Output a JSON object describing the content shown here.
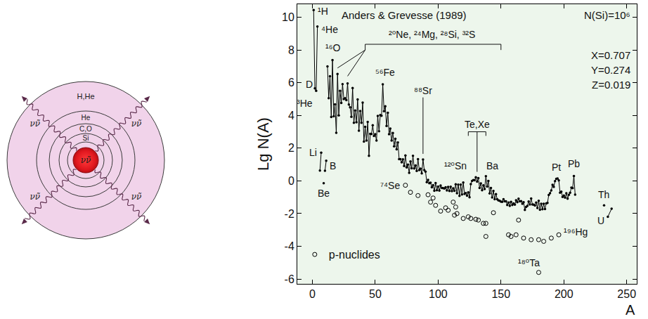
{
  "diagram": {
    "shells": [
      "H,He",
      "He",
      "C,O",
      "Si"
    ],
    "core": "νν̃",
    "rays": [
      "νν̃",
      "νν̃",
      "νν̃",
      "νν̃"
    ]
  },
  "chart_data": {
    "type": "line",
    "xlabel": "A",
    "ylabel": "Lg N(A)",
    "xlim": [
      -12,
      258
    ],
    "ylim": [
      -6.3,
      10.8
    ],
    "xticks": [
      0,
      50,
      100,
      150,
      200,
      250
    ],
    "yticks": [
      -6,
      -4,
      -2,
      0,
      2,
      4,
      6,
      8,
      10
    ],
    "grid": false,
    "legend": "lower left",
    "series": [
      {
        "color": "#000000",
        "marker": "dot",
        "line_style": "solid",
        "x": [
          1,
          2,
          3,
          4
        ],
        "values": [
          10.45,
          5.66,
          5.5,
          9.44
        ]
      },
      {
        "color": "#000000",
        "marker": "dot",
        "line_style": "solid",
        "x": [
          6,
          7,
          8,
          10,
          11
        ],
        "values": [
          0.63,
          1.72,
          null,
          0.62,
          1.23
        ]
      },
      {
        "color": "#000000",
        "marker": "dot",
        "line_style": "solid",
        "x": [
          9
        ],
        "values": [
          -0.14
        ]
      },
      {
        "color": "#000000",
        "marker": "dot",
        "line_style": "solid",
        "x": [
          12,
          13,
          14,
          15,
          16,
          17,
          18,
          19,
          20,
          21,
          22,
          23,
          24,
          25,
          26,
          27,
          28,
          29,
          30,
          31,
          32,
          33,
          34,
          35,
          36,
          37,
          38,
          39,
          40,
          41,
          42,
          43,
          44,
          45,
          46,
          47,
          48,
          49,
          50,
          51,
          52,
          53,
          54,
          55,
          56,
          57,
          58,
          59,
          60,
          61,
          62,
          63,
          64,
          65,
          66,
          67,
          68,
          69,
          70,
          71,
          72,
          73,
          74,
          75,
          76,
          77,
          78,
          79,
          80,
          81,
          82,
          83,
          84,
          85,
          86,
          87,
          88,
          89,
          90,
          91,
          92,
          93,
          94,
          95,
          96,
          97,
          98,
          99,
          100,
          101,
          102,
          103,
          104,
          105,
          106,
          107,
          108,
          109,
          110,
          111,
          112,
          113,
          114,
          115,
          116,
          117,
          118,
          119,
          120,
          121,
          122,
          123,
          124,
          125,
          126,
          127,
          128,
          129,
          130,
          131,
          132,
          133,
          134,
          135,
          136,
          137,
          138,
          139,
          140,
          141,
          142,
          143,
          144,
          145,
          146,
          147,
          148,
          149,
          150,
          151,
          152,
          153,
          154,
          155,
          156,
          157,
          158,
          159,
          160,
          161,
          162,
          163,
          164,
          165,
          166,
          167,
          168,
          169,
          170,
          171,
          172,
          173,
          174,
          175,
          176,
          177,
          178,
          179,
          180,
          181,
          182,
          183,
          184,
          185,
          186,
          187,
          188,
          189,
          190,
          191,
          192,
          193,
          194,
          195,
          196,
          197,
          198,
          199,
          200,
          201,
          202,
          203,
          204,
          205,
          206,
          207,
          208,
          209
        ],
        "values": [
          7.0,
          5.05,
          6.4,
          3.9,
          7.38,
          3.95,
          4.68,
          2.94,
          6.54,
          4.0,
          5.5,
          4.76,
          5.91,
          5.0,
          5.05,
          4.93,
          5.96,
          4.67,
          4.5,
          3.92,
          5.68,
          3.55,
          4.3,
          3.58,
          4.98,
          3.07,
          4.27,
          3.55,
          4.78,
          2.4,
          3.3,
          2.47,
          3.6,
          1.53,
          2.87,
          2.86,
          3.4,
          2.74,
          2.85,
          2.47,
          3.97,
          3.03,
          4.02,
          3.98,
          5.9,
          4.26,
          4.56,
          3.36,
          4.16,
          2.85,
          3.2,
          2.46,
          2.93,
          2.11,
          2.57,
          1.93,
          2.35,
          1.33,
          1.33,
          1.13,
          1.32,
          0.91,
          1.55,
          0.82,
          0.99,
          0.49,
          1.19,
          0.77,
          1.53,
          0.76,
          0.94,
          0.61,
          1.33,
          0.66,
          0.75,
          0.46,
          1.31,
          0.66,
          0.56,
          -0.08,
          0.06,
          -0.15,
          -0.11,
          -0.39,
          -0.26,
          -0.61,
          -0.13,
          -0.58,
          -0.35,
          -0.6,
          -0.29,
          -0.43,
          -0.45,
          -0.47,
          -0.39,
          -0.59,
          -0.37,
          -0.62,
          -0.36,
          -0.63,
          -0.46,
          -0.61,
          -0.21,
          -0.76,
          -0.23,
          -0.92,
          -0.23,
          -0.83,
          -0.1,
          -0.8,
          -0.75,
          -0.91,
          -0.7,
          -1.0,
          -0.2,
          -0.01,
          0.05,
          0.04,
          0.22,
          -0.05,
          0.17,
          -0.43,
          -0.16,
          -0.58,
          -0.27,
          -0.5,
          0.28,
          -0.35,
          -0.01,
          -0.77,
          -0.44,
          -1.02,
          -0.62,
          -1.12,
          -0.81,
          -1.12,
          -1.2,
          -1.22,
          -1.27,
          -1.28,
          -1.12,
          -1.25,
          -1.25,
          -1.48,
          -1.33,
          -1.53,
          -1.28,
          -1.48,
          -1.38,
          -1.46,
          -1.19,
          -1.3,
          -1.09,
          -1.25,
          -1.24,
          -1.4,
          -1.3,
          -1.78,
          -1.59,
          -1.53,
          -1.26,
          -1.45,
          -1.08,
          -1.45,
          -1.46,
          -1.51,
          -1.33,
          -1.66,
          -1.22,
          -1.77,
          -1.4,
          -1.73,
          -1.4,
          -1.72,
          -1.38,
          -1.35,
          -0.87,
          -0.76,
          -0.59,
          -0.24,
          -0.37,
          -0.02,
          0.12,
          0.15,
          0.03,
          -0.72,
          -0.66,
          -0.98,
          -0.9,
          -1.03,
          -0.76,
          -1.09,
          -0.85,
          -0.73,
          -0.41,
          -0.45,
          0.3,
          -0.84
        ]
      },
      {
        "color": "#000000",
        "marker": "dot",
        "line_style": "solid",
        "x": [
          232
        ],
        "values": [
          -1.5
        ]
      },
      {
        "color": "#000000",
        "marker": "dot",
        "line_style": "solid",
        "x": [
          235,
          238
        ],
        "values": [
          -2.2,
          -1.7
        ]
      },
      {
        "name": "p-nuclides",
        "type": "scatter",
        "color": "#000000",
        "marker": "open circle",
        "x": [
          74,
          78,
          84,
          92,
          94,
          96,
          98,
          102,
          106,
          108,
          112,
          113,
          114,
          115,
          120,
          124,
          126,
          130,
          132,
          136,
          138,
          138,
          144,
          156,
          158,
          162,
          164,
          168,
          174,
          180,
          180,
          184,
          190,
          196
        ],
        "values": [
          -0.27,
          -0.7,
          -0.9,
          -0.85,
          -1.3,
          -1.05,
          -1.5,
          -1.85,
          -1.65,
          -1.8,
          -1.3,
          -2.1,
          -1.6,
          -2.0,
          -2.3,
          -2.2,
          -2.3,
          -2.35,
          -2.4,
          -2.6,
          -2.6,
          -3.4,
          -1.95,
          -3.3,
          -3.4,
          -3.3,
          -2.4,
          -3.5,
          -3.6,
          -3.6,
          -5.6,
          -3.7,
          -3.5,
          -3.3
        ]
      }
    ],
    "annotations": [
      "Anders & Grevesse (1989)",
      "N(Si)=10⁶",
      "X=0.707",
      "Y=0.274",
      "Z=0.019",
      "¹H",
      "⁴He",
      "D",
      "³He",
      "¹⁶O",
      "²⁰Ne, ²⁴Mg, ²⁸Si, ³²S",
      "⁵⁶Fe",
      "⁸⁸Sr",
      "Te,Xe",
      "¹²⁰Sn",
      "Ba",
      "Li",
      "B",
      "Be",
      "⁷⁴Se",
      "Pt",
      "Pb",
      "Th",
      "U",
      "¹⁹⁶Hg",
      "¹⁸⁰Ta"
    ]
  }
}
